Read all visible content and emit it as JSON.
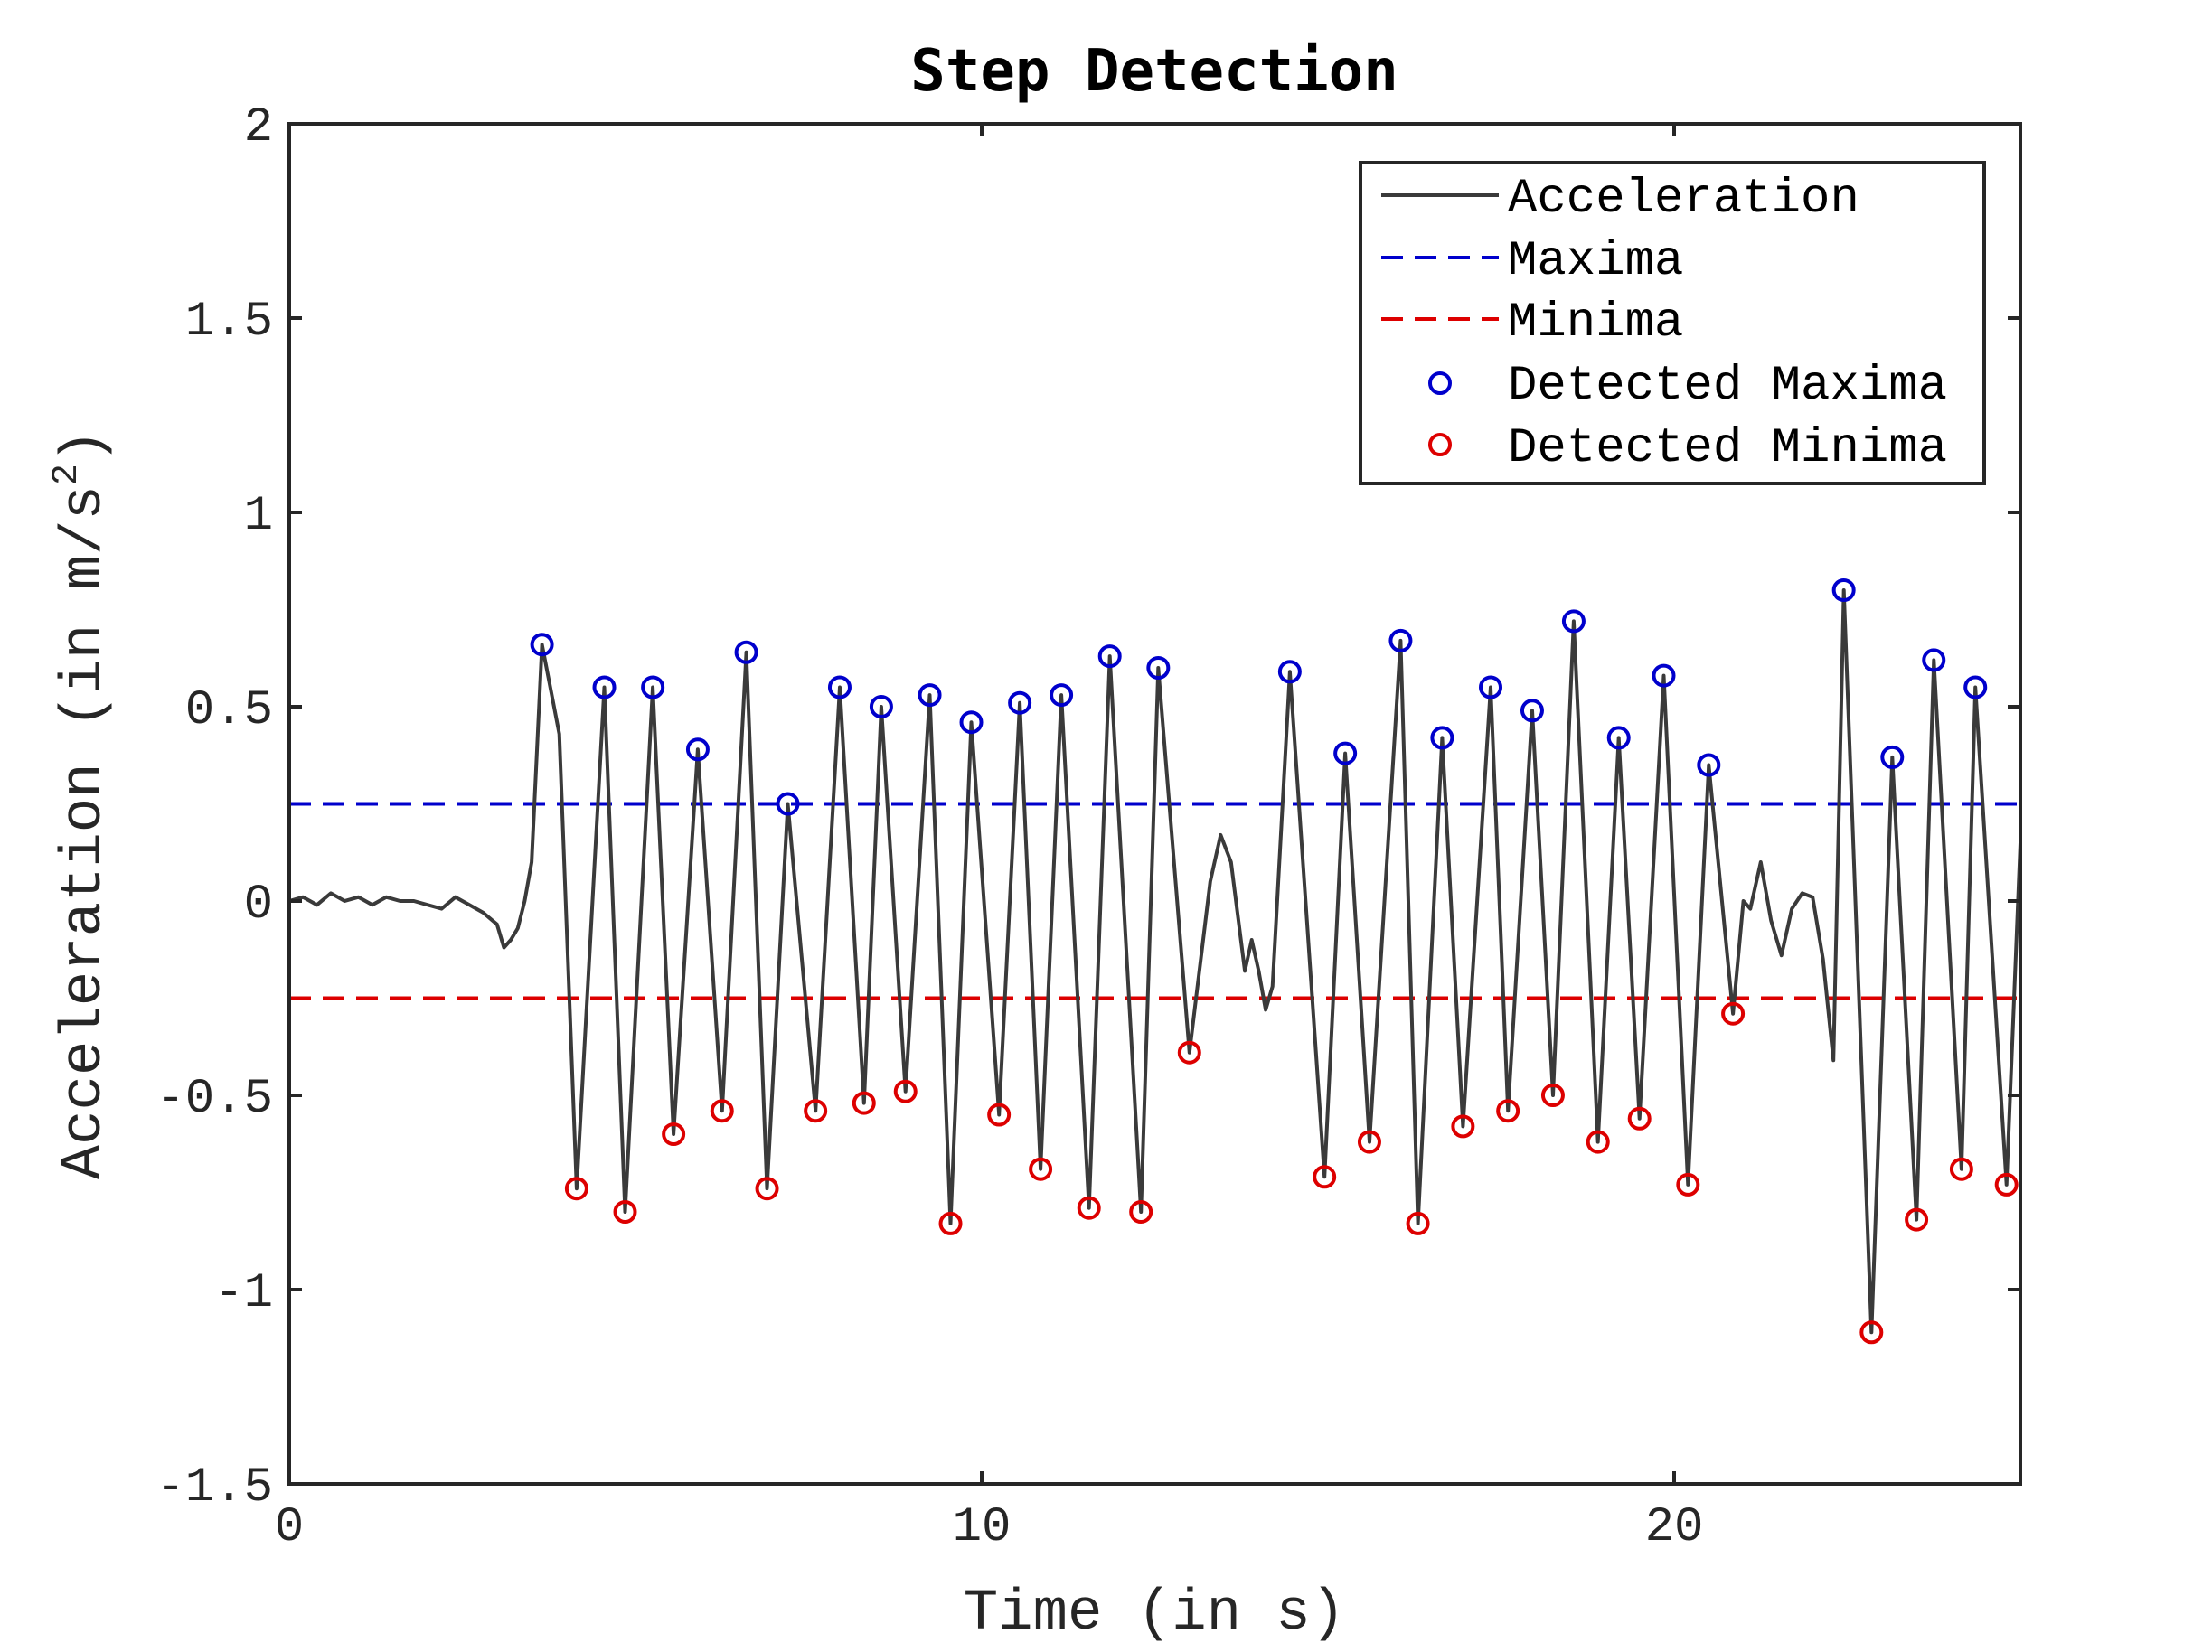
{
  "chart_data": {
    "type": "line",
    "title": "Step Detection",
    "xlabel": "Time (in s)",
    "ylabel_prefix": "Acceleration (in m/s",
    "ylabel_sup": "2",
    "ylabel_suffix": ")",
    "xlim": [
      0,
      25
    ],
    "ylim": [
      -1.5,
      2
    ],
    "xticks": [
      0,
      10,
      20
    ],
    "xtick_labels": [
      "0",
      "10",
      "20"
    ],
    "yticks": [
      -1.5,
      -1,
      -0.5,
      0,
      0.5,
      1,
      1.5,
      2
    ],
    "ytick_labels": [
      "-1.5",
      "-1",
      "-0.5",
      "0",
      "0.5",
      "1",
      "1.5",
      "2"
    ],
    "grid": false,
    "legend_position": "top-right",
    "legend": [
      "Acceleration",
      "Maxima",
      "Minima",
      "Detected Maxima",
      "Detected Minima"
    ],
    "colors": {
      "acceleration": "#3a3a3a",
      "maxima": "#0000cc",
      "minima": "#dd0000",
      "detected_maxima": "#0000cc",
      "detected_minima": "#dd0000"
    },
    "thresholds": {
      "maxima": 0.25,
      "minima": -0.25
    },
    "detected_maxima": [
      {
        "x": 3.65,
        "y": 0.66
      },
      {
        "x": 4.55,
        "y": 0.55
      },
      {
        "x": 5.25,
        "y": 0.55
      },
      {
        "x": 5.9,
        "y": 0.39
      },
      {
        "x": 6.6,
        "y": 0.64
      },
      {
        "x": 7.2,
        "y": 0.25
      },
      {
        "x": 7.95,
        "y": 0.55
      },
      {
        "x": 8.55,
        "y": 0.5
      },
      {
        "x": 9.25,
        "y": 0.53
      },
      {
        "x": 9.85,
        "y": 0.46
      },
      {
        "x": 10.55,
        "y": 0.51
      },
      {
        "x": 11.15,
        "y": 0.53
      },
      {
        "x": 11.85,
        "y": 0.63
      },
      {
        "x": 12.55,
        "y": 0.6
      },
      {
        "x": 14.45,
        "y": 0.59
      },
      {
        "x": 15.25,
        "y": 0.38
      },
      {
        "x": 16.05,
        "y": 0.67
      },
      {
        "x": 16.65,
        "y": 0.42
      },
      {
        "x": 17.35,
        "y": 0.55
      },
      {
        "x": 17.95,
        "y": 0.49
      },
      {
        "x": 18.55,
        "y": 0.72
      },
      {
        "x": 19.2,
        "y": 0.42
      },
      {
        "x": 19.85,
        "y": 0.58
      },
      {
        "x": 20.5,
        "y": 0.35
      },
      {
        "x": 22.45,
        "y": 0.8
      },
      {
        "x": 23.15,
        "y": 0.37
      },
      {
        "x": 23.75,
        "y": 0.62
      },
      {
        "x": 24.35,
        "y": 0.55
      }
    ],
    "detected_minima": [
      {
        "x": 4.15,
        "y": -0.74
      },
      {
        "x": 4.85,
        "y": -0.8
      },
      {
        "x": 5.55,
        "y": -0.6
      },
      {
        "x": 6.25,
        "y": -0.54
      },
      {
        "x": 6.9,
        "y": -0.74
      },
      {
        "x": 7.6,
        "y": -0.54
      },
      {
        "x": 8.3,
        "y": -0.52
      },
      {
        "x": 8.9,
        "y": -0.49
      },
      {
        "x": 9.55,
        "y": -0.83
      },
      {
        "x": 10.25,
        "y": -0.55
      },
      {
        "x": 10.85,
        "y": -0.69
      },
      {
        "x": 11.55,
        "y": -0.79
      },
      {
        "x": 12.3,
        "y": -0.8
      },
      {
        "x": 13.0,
        "y": -0.39
      },
      {
        "x": 14.95,
        "y": -0.71
      },
      {
        "x": 15.6,
        "y": -0.62
      },
      {
        "x": 16.3,
        "y": -0.83
      },
      {
        "x": 16.95,
        "y": -0.58
      },
      {
        "x": 17.6,
        "y": -0.54
      },
      {
        "x": 18.25,
        "y": -0.5
      },
      {
        "x": 18.9,
        "y": -0.62
      },
      {
        "x": 19.5,
        "y": -0.56
      },
      {
        "x": 20.2,
        "y": -0.73
      },
      {
        "x": 20.85,
        "y": -0.29
      },
      {
        "x": 22.85,
        "y": -1.11
      },
      {
        "x": 23.5,
        "y": -0.82
      },
      {
        "x": 24.15,
        "y": -0.69
      },
      {
        "x": 24.8,
        "y": -0.73
      }
    ],
    "acceleration": {
      "x": [
        0,
        0.2,
        0.4,
        0.6,
        0.8,
        1.0,
        1.2,
        1.4,
        1.6,
        1.8,
        2.0,
        2.2,
        2.4,
        2.6,
        2.8,
        3.0,
        3.1,
        3.2,
        3.3,
        3.4,
        3.5,
        3.65,
        3.9,
        4.15,
        4.55,
        4.85,
        5.25,
        5.55,
        5.9,
        6.25,
        6.6,
        6.9,
        7.2,
        7.6,
        7.95,
        8.3,
        8.55,
        8.9,
        9.25,
        9.55,
        9.85,
        10.25,
        10.55,
        10.85,
        11.15,
        11.55,
        11.85,
        12.3,
        12.55,
        13.0,
        13.3,
        13.45,
        13.6,
        13.8,
        13.9,
        14.0,
        14.1,
        14.2,
        14.45,
        14.95,
        15.25,
        15.6,
        16.05,
        16.3,
        16.65,
        16.95,
        17.35,
        17.6,
        17.95,
        18.25,
        18.55,
        18.9,
        19.2,
        19.5,
        19.85,
        20.2,
        20.5,
        20.85,
        21.0,
        21.1,
        21.25,
        21.4,
        21.55,
        21.7,
        21.85,
        22.0,
        22.15,
        22.3,
        22.45,
        22.85,
        23.15,
        23.5,
        23.75,
        24.15,
        24.35,
        24.8,
        25.0
      ],
      "y": [
        0.0,
        0.01,
        -0.01,
        0.02,
        0.0,
        0.01,
        -0.01,
        0.01,
        0.0,
        0.0,
        -0.01,
        -0.02,
        0.01,
        -0.01,
        -0.03,
        -0.06,
        -0.12,
        -0.1,
        -0.07,
        0.0,
        0.1,
        0.66,
        0.43,
        -0.74,
        0.55,
        -0.8,
        0.55,
        -0.6,
        0.39,
        -0.54,
        0.64,
        -0.74,
        0.25,
        -0.54,
        0.55,
        -0.52,
        0.5,
        -0.49,
        0.53,
        -0.83,
        0.46,
        -0.55,
        0.51,
        -0.69,
        0.53,
        -0.79,
        0.63,
        -0.8,
        0.6,
        -0.39,
        0.05,
        0.17,
        0.1,
        -0.18,
        -0.1,
        -0.18,
        -0.28,
        -0.22,
        0.59,
        -0.71,
        0.38,
        -0.62,
        0.67,
        -0.83,
        0.42,
        -0.58,
        0.55,
        -0.54,
        0.49,
        -0.5,
        0.72,
        -0.62,
        0.42,
        -0.56,
        0.58,
        -0.73,
        0.35,
        -0.29,
        0.0,
        -0.02,
        0.1,
        -0.05,
        -0.14,
        -0.02,
        0.02,
        0.01,
        -0.15,
        -0.41,
        0.8,
        -1.11,
        0.37,
        -0.82,
        0.62,
        -0.69,
        0.55,
        -0.73,
        0.15
      ]
    }
  }
}
